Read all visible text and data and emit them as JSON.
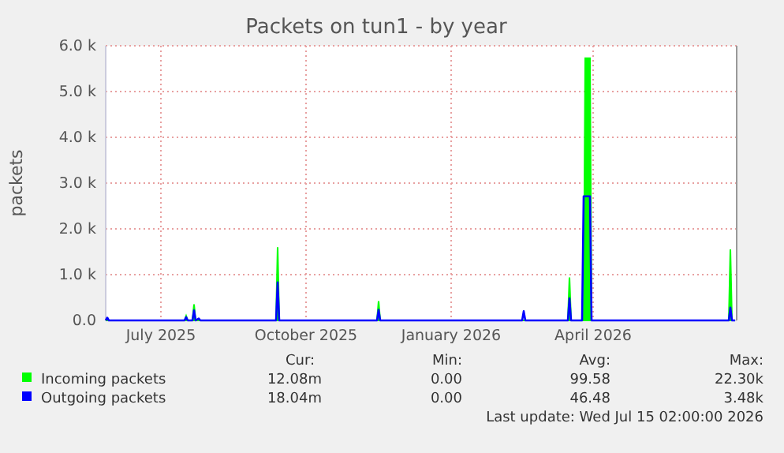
{
  "chart_data": {
    "type": "area",
    "title": "Packets on tun1 - by year",
    "ylabel": "packets",
    "x": [
      "2025-06-11",
      "2025-06-12",
      "2025-06-13",
      "2025-07-31",
      "2025-08-01",
      "2025-08-02",
      "2025-08-05",
      "2025-08-06",
      "2025-08-07",
      "2025-08-09",
      "2025-08-10",
      "2025-09-27",
      "2025-09-28",
      "2025-09-29",
      "2025-11-30",
      "2025-12-01",
      "2025-12-02",
      "2026-03-02",
      "2026-03-03",
      "2026-03-04",
      "2026-03-31",
      "2026-04-01",
      "2026-04-02",
      "2026-04-09",
      "2026-04-10",
      "2026-04-11",
      "2026-04-14",
      "2026-04-15",
      "2026-07-11",
      "2026-07-12",
      "2026-07-13",
      "2026-07-15"
    ],
    "series": [
      {
        "name": "Incoming packets",
        "color": "#00ff00",
        "values": [
          0,
          0,
          0,
          0,
          100,
          0,
          0,
          350,
          0,
          0,
          0,
          0,
          1600,
          0,
          0,
          420,
          0,
          0,
          0,
          0,
          0,
          940,
          0,
          0,
          0,
          5730,
          5730,
          0,
          0,
          1550,
          0,
          0
        ]
      },
      {
        "name": "Outgoing packets",
        "color": "#0000ff",
        "type": "line",
        "values": [
          0,
          60,
          0,
          0,
          70,
          0,
          0,
          220,
          0,
          40,
          0,
          0,
          830,
          0,
          0,
          230,
          0,
          0,
          200,
          0,
          0,
          480,
          0,
          0,
          2710,
          2710,
          2710,
          0,
          0,
          280,
          0,
          0
        ]
      }
    ],
    "xlim": [
      "2025-06-11",
      "2026-07-16"
    ],
    "xticks": [
      {
        "value": "2025-07-16",
        "label": "July 2025"
      },
      {
        "value": "2025-10-16",
        "label": "October 2025"
      },
      {
        "value": "2026-01-16",
        "label": "January 2026"
      },
      {
        "value": "2026-04-16",
        "label": "April 2026"
      }
    ],
    "ylim": [
      0,
      6000
    ],
    "yticks": [
      {
        "value": 0,
        "label": "0.0"
      },
      {
        "value": 1000,
        "label": "1.0 k"
      },
      {
        "value": 2000,
        "label": "2.0 k"
      },
      {
        "value": 3000,
        "label": "3.0 k"
      },
      {
        "value": 4000,
        "label": "4.0 k"
      },
      {
        "value": 5000,
        "label": "5.0 k"
      },
      {
        "value": 6000,
        "label": "6.0 k"
      }
    ],
    "grid": true,
    "legend": "bottom",
    "annotations": [
      "Cur:",
      "Min:",
      "Avg:",
      "Max:",
      "12.08m",
      "0.00",
      "99.58",
      "22.30k",
      "18.04m",
      "0.00",
      "46.48",
      "3.48k",
      "Last update: Wed Jul 15 02:00:00 2026"
    ]
  }
}
